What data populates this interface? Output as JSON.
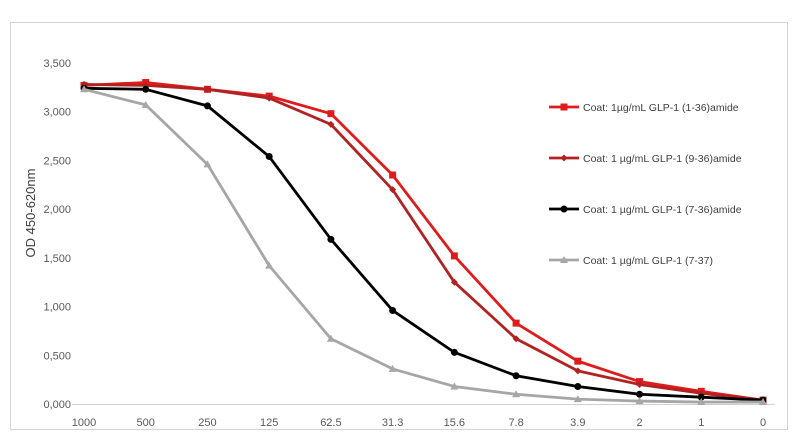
{
  "chart_data": {
    "type": "line",
    "title": "",
    "xlabel": "",
    "ylabel": "OD 450-620nm",
    "categories": [
      "1000",
      "500",
      "250",
      "125",
      "62.5",
      "31.3",
      "15.6",
      "7.8",
      "3.9",
      "2",
      "1",
      "0"
    ],
    "ylim": [
      0,
      3.5
    ],
    "yticks": [
      {
        "value": 0,
        "label": "0,000"
      },
      {
        "value": 0.5,
        "label": "0,500"
      },
      {
        "value": 1.0,
        "label": "1,000"
      },
      {
        "value": 1.5,
        "label": "1,500"
      },
      {
        "value": 2.0,
        "label": "2,000"
      },
      {
        "value": 2.5,
        "label": "2,500"
      },
      {
        "value": 3.0,
        "label": "3,000"
      },
      {
        "value": 3.5,
        "label": "3,500"
      }
    ],
    "grid": false,
    "legend_position": "right",
    "series": [
      {
        "name": "Coat: 1µg/mL GLP-1 (1-36)amide",
        "color": "#e01b1b",
        "marker": "square",
        "values": [
          3.27,
          3.3,
          3.23,
          3.16,
          2.98,
          2.35,
          1.52,
          0.83,
          0.44,
          0.23,
          0.13,
          0.04
        ]
      },
      {
        "name": "Coat: 1 µg/mL GLP-1 (9-36)amide",
        "color": "#b22222",
        "marker": "diamond",
        "values": [
          3.28,
          3.27,
          3.23,
          3.14,
          2.87,
          2.2,
          1.25,
          0.67,
          0.34,
          0.2,
          0.11,
          0.04
        ]
      },
      {
        "name": "Coat: 1 µg/mL GLP-1 (7-36)amide",
        "color": "#000000",
        "marker": "circle",
        "values": [
          3.24,
          3.23,
          3.06,
          2.54,
          1.69,
          0.96,
          0.53,
          0.29,
          0.18,
          0.1,
          0.07,
          0.04
        ]
      },
      {
        "name": "Coat: 1 µg/mL GLP-1 (7-37)",
        "color": "#a6a6a6",
        "marker": "triangle",
        "values": [
          3.23,
          3.07,
          2.46,
          1.42,
          0.67,
          0.36,
          0.18,
          0.1,
          0.05,
          0.03,
          0.02,
          0.02
        ]
      }
    ]
  }
}
